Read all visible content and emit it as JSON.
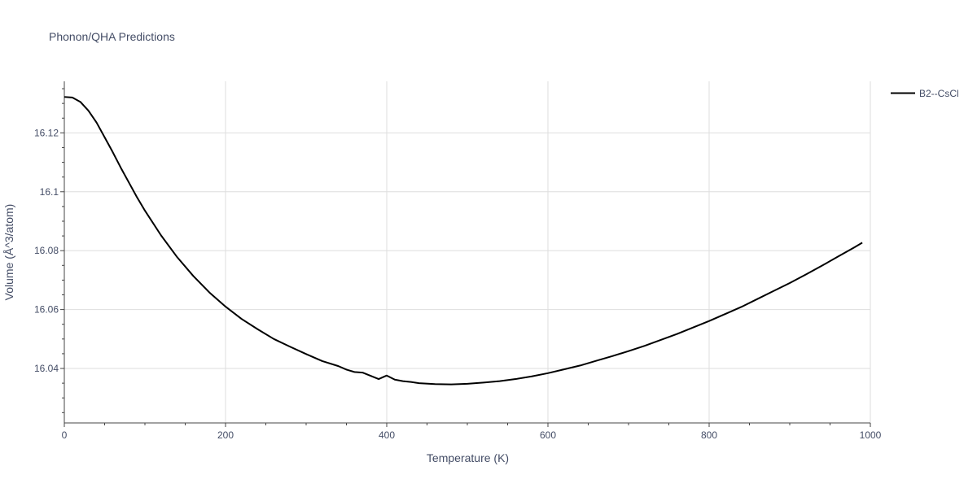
{
  "chart_data": {
    "type": "line",
    "title": "Phonon/QHA Predictions",
    "xlabel": "Temperature (K)",
    "ylabel": "Volume (Å^3/atom)",
    "xlim": [
      0,
      1000
    ],
    "ylim": [
      16.0215,
      16.1375
    ],
    "x_ticks": [
      0,
      200,
      400,
      600,
      800,
      1000
    ],
    "x_tick_labels": [
      "0",
      "200",
      "400",
      "600",
      "800",
      "1000"
    ],
    "y_ticks": [
      16.04,
      16.06,
      16.08,
      16.1,
      16.12
    ],
    "y_tick_labels": [
      "16.04",
      "16.06",
      "16.08",
      "16.1",
      "16.12"
    ],
    "grid": true,
    "legend_position": "top-right",
    "series": [
      {
        "name": "B2--CsCl",
        "color": "#000000",
        "x": [
          0,
          10,
          20,
          30,
          40,
          50,
          60,
          70,
          80,
          90,
          100,
          120,
          140,
          160,
          180,
          200,
          220,
          240,
          260,
          280,
          300,
          320,
          340,
          350,
          360,
          370,
          380,
          390,
          400,
          410,
          420,
          430,
          440,
          460,
          480,
          500,
          520,
          540,
          560,
          580,
          600,
          620,
          640,
          660,
          680,
          700,
          720,
          740,
          760,
          780,
          800,
          820,
          840,
          860,
          880,
          900,
          920,
          940,
          960,
          980,
          990
        ],
        "values": [
          16.1322,
          16.132,
          16.1305,
          16.1275,
          16.1235,
          16.1185,
          16.1135,
          16.1082,
          16.1032,
          16.0982,
          16.0936,
          16.0852,
          16.0778,
          16.0714,
          16.0658,
          16.061,
          16.0568,
          16.0533,
          16.05,
          16.0474,
          16.0449,
          16.0425,
          16.0408,
          16.0396,
          16.0388,
          16.0386,
          16.0375,
          16.0364,
          16.0376,
          16.0362,
          16.0357,
          16.0354,
          16.035,
          16.0347,
          16.0346,
          16.0348,
          16.0352,
          16.0357,
          16.0364,
          16.0373,
          16.0384,
          16.0397,
          16.041,
          16.0426,
          16.0442,
          16.0459,
          16.0477,
          16.0497,
          16.0517,
          16.0539,
          16.0561,
          16.0585,
          16.0609,
          16.0636,
          16.0663,
          16.069,
          16.0719,
          16.0749,
          16.078,
          16.0811,
          16.0827
        ]
      }
    ]
  }
}
